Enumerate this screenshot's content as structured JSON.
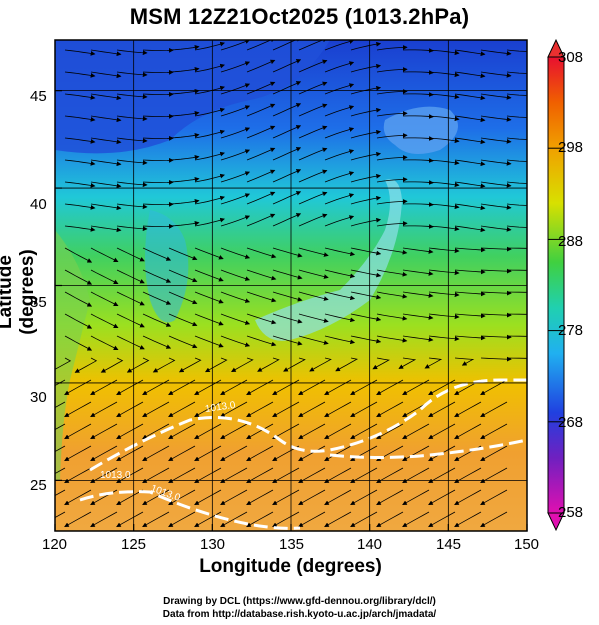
{
  "title": "MSM 12Z21Oct2025 (1013.2hPa)",
  "axes": {
    "xlabel": "Longitude (degrees)",
    "ylabel": "Latitude  (degrees)",
    "xticks": [
      "120",
      "125",
      "130",
      "135",
      "140",
      "145",
      "150"
    ],
    "yticks": [
      "25",
      "30",
      "35",
      "40",
      "45"
    ]
  },
  "colorbar": {
    "ticks": [
      "308",
      "298",
      "288",
      "278",
      "268",
      "258"
    ],
    "colors": [
      "#e8103a",
      "#f5a000",
      "#e0e000",
      "#30c030",
      "#20c0e0",
      "#2040e0",
      "#d000c0"
    ]
  },
  "contour_labels": [
    "1013.0",
    "1013.0",
    "1013.0"
  ],
  "credits": {
    "line1": "Drawing by DCL (https://www.gfd-dennou.org/library/dcl/)",
    "line2": "Data from http://database.rish.kyoto-u.ac.jp/arch/jmadata/"
  },
  "chart_data": {
    "type": "heatmap",
    "title": "MSM 12Z21Oct2025 (1013.2hPa)",
    "xlabel": "Longitude (degrees)",
    "ylabel": "Latitude  (degrees)",
    "xlim": [
      120,
      150
    ],
    "ylim": [
      22.4,
      47.6
    ],
    "color_range": [
      258,
      308
    ],
    "colorbar_ticks": [
      258,
      268,
      278,
      288,
      298,
      308
    ],
    "contour_level": 1013.0,
    "grid": true
  }
}
